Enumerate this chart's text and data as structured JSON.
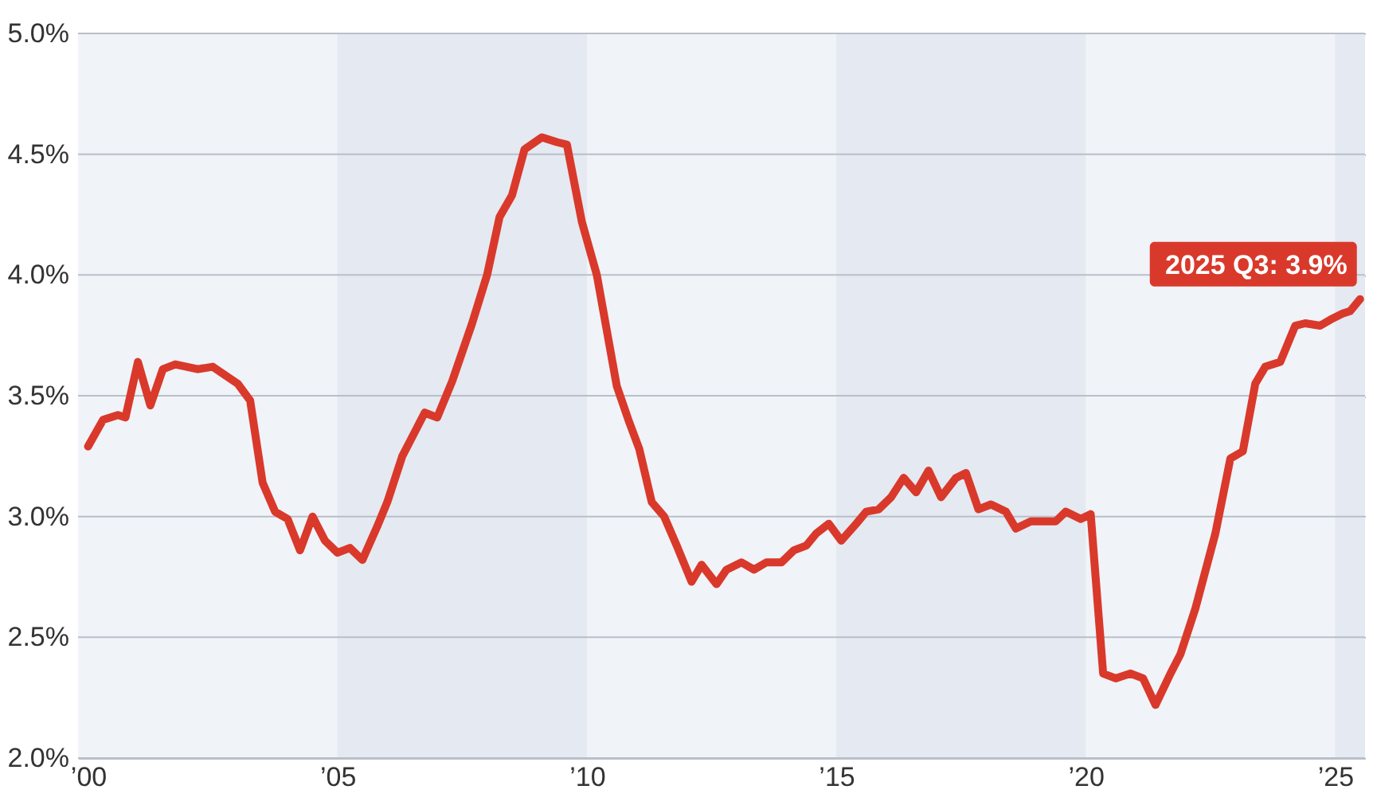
{
  "chart_data": {
    "type": "line",
    "x": [
      2000.0,
      2000.3,
      2000.6,
      2000.75,
      2001.0,
      2001.25,
      2001.5,
      2001.75,
      2002.2,
      2002.5,
      2003.0,
      2003.25,
      2003.5,
      2003.75,
      2004.0,
      2004.25,
      2004.5,
      2004.75,
      2005.0,
      2005.25,
      2005.5,
      2005.8,
      2006.0,
      2006.3,
      2006.75,
      2007.0,
      2007.3,
      2007.7,
      2008.0,
      2008.25,
      2008.5,
      2008.75,
      2009.1,
      2009.4,
      2009.6,
      2009.9,
      2010.2,
      2010.6,
      2010.85,
      2011.05,
      2011.3,
      2011.55,
      2011.8,
      2012.1,
      2012.3,
      2012.6,
      2012.8,
      2013.1,
      2013.35,
      2013.6,
      2013.9,
      2014.15,
      2014.4,
      2014.6,
      2014.85,
      2015.1,
      2015.4,
      2015.6,
      2015.85,
      2016.1,
      2016.35,
      2016.6,
      2016.85,
      2017.1,
      2017.4,
      2017.6,
      2017.85,
      2018.1,
      2018.4,
      2018.6,
      2018.9,
      2019.4,
      2019.6,
      2019.9,
      2020.1,
      2020.35,
      2020.6,
      2020.9,
      2021.15,
      2021.4,
      2021.7,
      2021.9,
      2022.2,
      2022.6,
      2022.9,
      2023.15,
      2023.4,
      2023.6,
      2023.9,
      2024.2,
      2024.4,
      2024.7,
      2024.95,
      2025.15,
      2025.3,
      2025.5
    ],
    "series": [
      {
        "color": "#d9392b",
        "values": [
          3.29,
          3.4,
          3.42,
          3.41,
          3.64,
          3.46,
          3.61,
          3.63,
          3.61,
          3.62,
          3.55,
          3.48,
          3.14,
          3.02,
          2.99,
          2.86,
          3.0,
          2.9,
          2.85,
          2.87,
          2.82,
          2.96,
          3.06,
          3.25,
          3.43,
          3.41,
          3.56,
          3.8,
          4.0,
          4.24,
          4.33,
          4.52,
          4.57,
          4.55,
          4.54,
          4.22,
          4.0,
          3.54,
          3.39,
          3.28,
          3.06,
          3.0,
          2.88,
          2.73,
          2.8,
          2.72,
          2.78,
          2.81,
          2.78,
          2.81,
          2.81,
          2.86,
          2.88,
          2.93,
          2.97,
          2.9,
          2.97,
          3.02,
          3.03,
          3.08,
          3.16,
          3.1,
          3.19,
          3.08,
          3.16,
          3.18,
          3.03,
          3.05,
          3.02,
          2.95,
          2.98,
          2.98,
          3.02,
          2.99,
          3.01,
          2.35,
          2.33,
          2.35,
          2.33,
          2.22,
          2.35,
          2.43,
          2.62,
          2.93,
          3.24,
          3.27,
          3.55,
          3.62,
          3.64,
          3.79,
          3.8,
          3.79,
          3.82,
          3.84,
          3.85,
          3.9
        ]
      }
    ],
    "xlim": [
      1999.8,
      2025.6
    ],
    "xticks": [
      {
        "value": 2000,
        "label": "’00"
      },
      {
        "value": 2005,
        "label": "’05"
      },
      {
        "value": 2010,
        "label": "’10"
      },
      {
        "value": 2015,
        "label": "’15"
      },
      {
        "value": 2020,
        "label": "’20"
      },
      {
        "value": 2025,
        "label": "’25"
      }
    ],
    "ylim": [
      2.0,
      5.0
    ],
    "yticks": [
      {
        "value": 2.0,
        "label": "2.0%"
      },
      {
        "value": 2.5,
        "label": "2.5%"
      },
      {
        "value": 3.0,
        "label": "3.0%"
      },
      {
        "value": 3.5,
        "label": "3.5%"
      },
      {
        "value": 4.0,
        "label": "4.0%"
      },
      {
        "value": 4.5,
        "label": "4.5%"
      },
      {
        "value": 5.0,
        "label": "5.0%"
      }
    ],
    "grid": "y",
    "line_style": "solid",
    "bands": [
      {
        "axis": "x",
        "from": 2005,
        "to": 2010,
        "color": "#e5e9f1"
      },
      {
        "axis": "x",
        "from": 2015,
        "to": 2020,
        "color": "#e5e9f1"
      },
      {
        "axis": "x",
        "from": 2025,
        "to": 2025.6,
        "color": "#e5e9f1"
      }
    ],
    "annotations": [
      {
        "text": "2025 Q3: 3.9%",
        "x": 2025.5,
        "y": 3.9
      }
    ]
  }
}
